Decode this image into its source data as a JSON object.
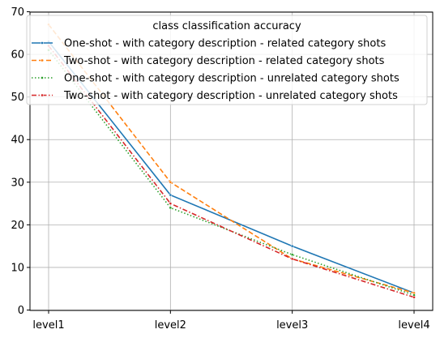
{
  "chart_data": {
    "type": "line",
    "title": "",
    "xlabel": "",
    "ylabel": "",
    "categories": [
      "level1",
      "level2",
      "level3",
      "level4"
    ],
    "yticks": [
      0,
      10,
      20,
      30,
      40,
      50,
      60,
      70
    ],
    "ylim": [
      0,
      70
    ],
    "grid": true,
    "legend": {
      "title": "class classification accuracy",
      "placement": "top-right"
    },
    "series": [
      {
        "name": "One-shot - with category description - related category shots",
        "values": [
          63,
          27,
          15,
          4
        ],
        "color": "#1f77b4",
        "style": "solid"
      },
      {
        "name": "Two-shot - with category description - related category shots",
        "values": [
          67,
          30,
          12,
          4
        ],
        "color": "#ff7f0e",
        "style": "dashed"
      },
      {
        "name": "One-shot - with category description - unrelated category shots",
        "values": [
          61,
          24,
          13,
          3.5
        ],
        "color": "#2ca02c",
        "style": "dotted"
      },
      {
        "name": "Two-shot - with category description - unrelated category shots",
        "values": [
          62,
          25,
          12,
          3
        ],
        "color": "#d62728",
        "style": "dashdot"
      }
    ]
  }
}
